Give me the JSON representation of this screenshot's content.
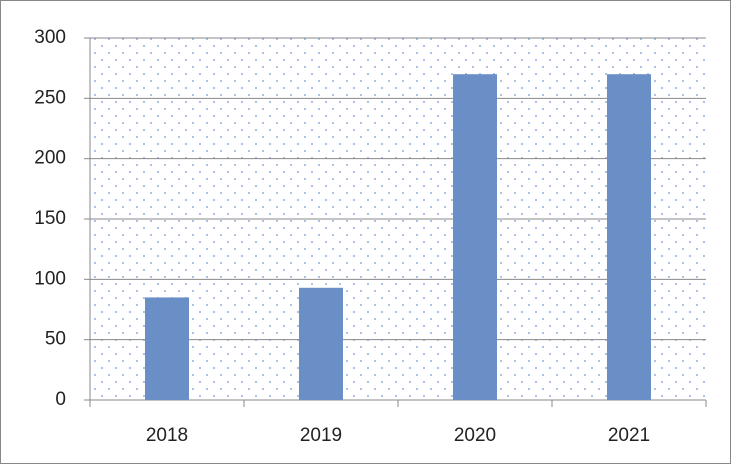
{
  "chart_data": {
    "type": "bar",
    "categories": [
      "2018",
      "2019",
      "2020",
      "2021"
    ],
    "values": [
      85,
      93,
      270,
      270
    ],
    "color": "#6a8fc7",
    "ylim": [
      0,
      300
    ],
    "yticks": [
      0,
      50,
      100,
      150,
      200,
      250,
      300
    ],
    "grid": true
  }
}
